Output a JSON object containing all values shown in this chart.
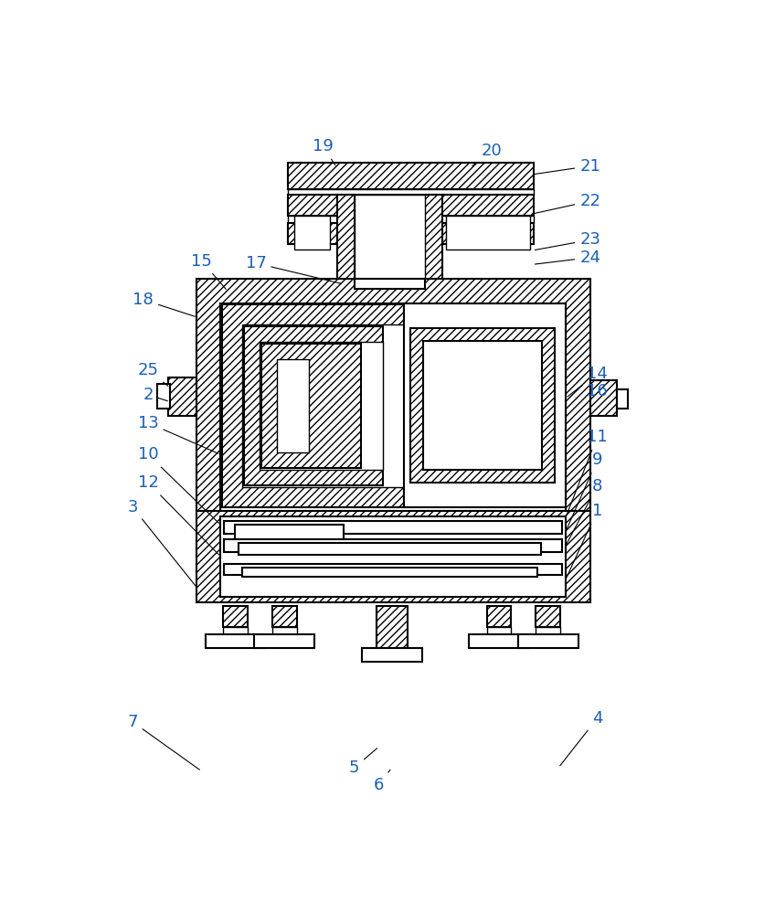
{
  "bg_color": "#ffffff",
  "line_color": "#000000",
  "label_color": "#1a5fb4",
  "figsize": [
    8.37,
    10.0
  ],
  "dpi": 100,
  "lw_main": 1.5,
  "lw_thin": 1.0,
  "hatch_pattern": "////",
  "label_fs": 13
}
